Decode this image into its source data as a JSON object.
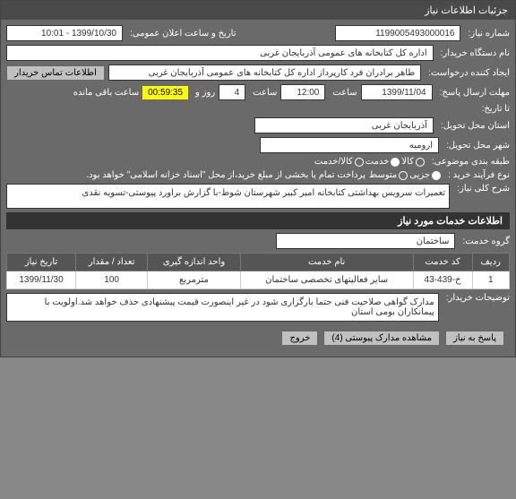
{
  "titlebar": "جزئیات اطلاعات نیاز",
  "labels": {
    "need_number": "شماره نیاز:",
    "announce_datetime": "تاریخ و ساعت اعلان عمومی:",
    "org_name": "نام دستگاه خریدار:",
    "creator": "ایجاد کننده درخواست:",
    "contact_btn": "اطلاعات تماس خریدار",
    "response_deadline": "مهلت ارسال پاسخ:",
    "to_date": "تا تاریخ:",
    "hour": "ساعت",
    "and": "و",
    "day": "روز و",
    "remaining": "ساعت باقی مانده",
    "delivery_province": "استان محل تحویل:",
    "delivery_city": "شهر محل تحویل:",
    "budget_class": "طبقه بندی موضوعی:",
    "purchase_type": "نوع فرآیند خرید :",
    "general_desc": "شرح کلی نیاز:",
    "service_info_header": "اطلاعات خدمات مورد نیاز",
    "service_group": "گروه خدمت:",
    "buyer_notes": "توضیحات خریدار:",
    "reply_btn": "پاسخ به نیاز",
    "attachments_btn": "مشاهده مدارک پیوستی (4)",
    "exit_btn": "خروج"
  },
  "values": {
    "need_number": "1199005493000016",
    "announce_datetime": "1399/10/30 - 10:01",
    "org_name": "اداره کل کتابخانه های عمومی آذربایجان غربی",
    "creator": "طاهر برادران فرد کارپرداز اداره کل کتابخانه های عمومی آذربایجان غربی",
    "response_date": "1399/11/04",
    "response_hour": "12:00",
    "days_left": "4",
    "countdown": "00:59:35",
    "province": "آذربایجان غربی",
    "city": "ارومیه",
    "purchase_note": "پرداخت تمام یا بخشی از مبلغ خرید،از محل \"اسناد خزانه اسلامی\" خواهد بود.",
    "general_desc": "تعمیرات سرویس بهداشتی کتابخانه امیر کبیر شهرستان شوط-با گزارش براورد پیوستی-تسویه نقدی",
    "service_group": "ساختمان",
    "buyer_notes": "مدارک گواهی صلاحیت فنی حتما بارگزاری شود در غیر اینصورت قیمت پیشنهادی حذف خواهد شد.اولویت با پیمانکاران بومی استان"
  },
  "budget_radios": [
    {
      "label": "کالا",
      "selected": false
    },
    {
      "label": "خدمت",
      "selected": true
    },
    {
      "label": "کالا/خدمت",
      "selected": false
    }
  ],
  "purchase_radios": [
    {
      "label": "جزیی",
      "selected": true
    },
    {
      "label": "متوسط",
      "selected": false
    }
  ],
  "table": {
    "headers": [
      "ردیف",
      "کد خدمت",
      "نام خدمت",
      "واحد اندازه گیری",
      "تعداد / مقدار",
      "تاریخ نیاز"
    ],
    "rows": [
      [
        "1",
        "خ-439-43",
        "سایر فعالیتهای تخصصی ساختمان",
        "مترمربع",
        "100",
        "1399/11/30"
      ]
    ]
  }
}
